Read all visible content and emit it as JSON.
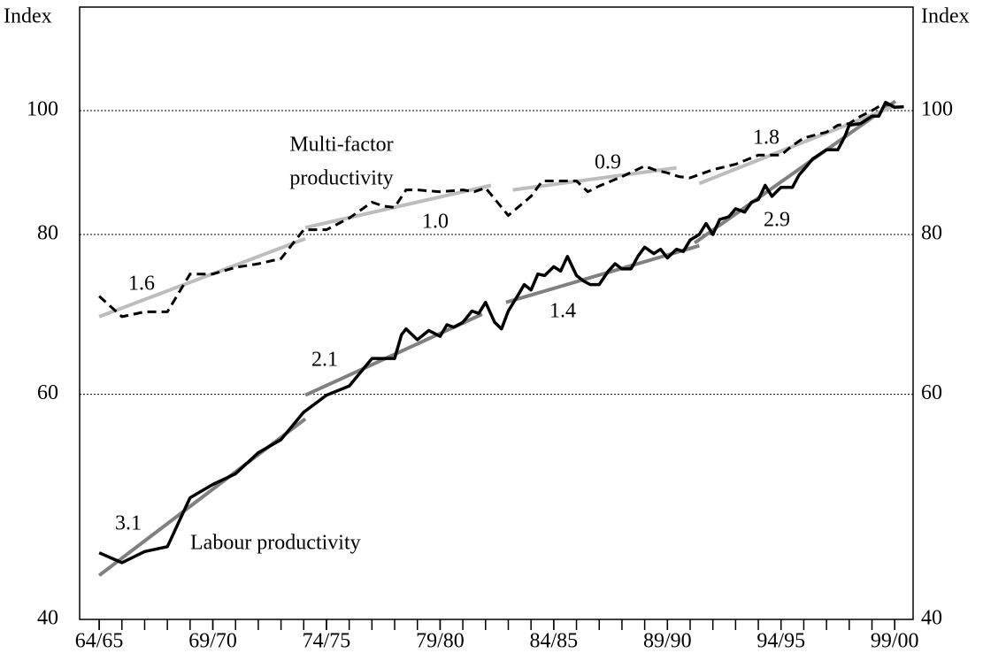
{
  "chart_data": {
    "type": "line",
    "log_y": true,
    "y_axis_label": "Index",
    "y2_axis_label": "Index",
    "xlim": [
      1963.14,
      1999.81
    ],
    "xticks": [
      {
        "value": 1964,
        "label": "64/65"
      },
      {
        "value": 1969,
        "label": "69/70"
      },
      {
        "value": 1974,
        "label": "74/75"
      },
      {
        "value": 1979,
        "label": "79/80"
      },
      {
        "value": 1984,
        "label": "84/85"
      },
      {
        "value": 1989,
        "label": "89/90"
      },
      {
        "value": 1994,
        "label": "94/95"
      },
      {
        "value": 1999,
        "label": "99/00"
      }
    ],
    "ylim": [
      40,
      120.5
    ],
    "yticks": [
      40,
      60,
      80,
      100
    ],
    "grid": true,
    "series": [
      {
        "color": "#000000",
        "dashed": false,
        "x": [
          1964,
          1965,
          1966,
          1967,
          1968,
          1969,
          1970,
          1971,
          1972,
          1973,
          1974,
          1975,
          1976,
          1977,
          1977.3,
          1977.5,
          1978,
          1978.5,
          1979,
          1979.3,
          1979.6,
          1980,
          1980.4,
          1980.7,
          1981,
          1981.4,
          1981.7,
          1982,
          1982.4,
          1982.7,
          1983,
          1983.3,
          1983.6,
          1984,
          1984.3,
          1984.6,
          1985,
          1985.3,
          1985.6,
          1986,
          1986.4,
          1986.7,
          1987,
          1987.4,
          1987.7,
          1988,
          1988.4,
          1988.7,
          1989,
          1989.4,
          1989.7,
          1990,
          1990.4,
          1990.7,
          1991,
          1991.3,
          1991.7,
          1992,
          1992.4,
          1992.7,
          1993,
          1993.3,
          1993.6,
          1994,
          1994.5,
          1994.8,
          1995,
          1995.4,
          1996,
          1996.5,
          1996.8,
          1997,
          1997.5,
          1998,
          1998.3,
          1998.6,
          1999,
          1999.4
        ],
        "values": [
          45.1,
          44.3,
          45.2,
          45.6,
          49.8,
          51.0,
          52.0,
          54.0,
          55.3,
          58.1,
          59.9,
          60.9,
          64.0,
          64.0,
          66.8,
          67.5,
          66.2,
          67.3,
          66.6,
          68.0,
          67.7,
          68.3,
          69.7,
          69.4,
          70.8,
          68.3,
          67.5,
          69.7,
          71.6,
          73.1,
          72.4,
          74.5,
          74.3,
          75.5,
          74.9,
          76.9,
          74.3,
          73.6,
          73.1,
          73.1,
          74.9,
          75.9,
          75.2,
          75.2,
          76.9,
          78.2,
          77.3,
          77.9,
          76.7,
          77.9,
          77.6,
          79.2,
          80.0,
          81.6,
          80.0,
          82.2,
          82.6,
          83.8,
          83.3,
          84.8,
          85.2,
          87.4,
          85.7,
          87.1,
          87.1,
          89.1,
          89.9,
          91.7,
          93.2,
          93.2,
          95.4,
          97.4,
          97.7,
          99.0,
          99.0,
          101.5,
          100.6,
          100.7
        ]
      },
      {
        "color": "#000000",
        "dashed": true,
        "x": [
          1964,
          1965,
          1966,
          1967,
          1968,
          1969,
          1970,
          1971,
          1972,
          1973,
          1974,
          1975,
          1976,
          1976.5,
          1977,
          1977.5,
          1978,
          1979,
          1980,
          1980.5,
          1981,
          1982,
          1983,
          1983.5,
          1984,
          1985,
          1985.5,
          1986,
          1987,
          1988,
          1988.5,
          1989,
          1989.5,
          1990,
          1991,
          1992,
          1993,
          1994,
          1994.5,
          1995,
          1996,
          1996.5,
          1997,
          1997.5,
          1998,
          1998.5,
          1999
        ],
        "values": [
          71.6,
          69.0,
          69.6,
          69.6,
          74.5,
          74.5,
          75.4,
          75.9,
          76.6,
          80.7,
          80.7,
          82.4,
          84.8,
          84.2,
          84.0,
          86.7,
          86.7,
          86.4,
          86.7,
          86.4,
          87.0,
          82.8,
          85.7,
          88.1,
          88.1,
          88.1,
          86.4,
          87.3,
          88.8,
          90.5,
          89.8,
          89.4,
          88.8,
          88.6,
          89.9,
          90.8,
          92.3,
          92.3,
          93.9,
          95.2,
          96.2,
          97.4,
          97.7,
          99.0,
          100.0,
          101.2,
          100.9
        ]
      }
    ],
    "trends": [
      {
        "label": "3.1",
        "color": "#808080",
        "x": [
          1964,
          1973.07
        ],
        "values": [
          43.3,
          57.4
        ]
      },
      {
        "label": "2.1",
        "color": "#808080",
        "x": [
          1973.07,
          1980.85
        ],
        "values": [
          59.9,
          69.3
        ]
      },
      {
        "label": "1.4",
        "color": "#808080",
        "x": [
          1981.9,
          1990.4
        ],
        "values": [
          70.8,
          78.4
        ]
      },
      {
        "label": "2.9",
        "color": "#808080",
        "x": [
          1990.2,
          1999.03
        ],
        "values": [
          78.8,
          101.7
        ]
      },
      {
        "label": "1.6",
        "color": "#bdbdbd",
        "x": [
          1964,
          1973.07
        ],
        "values": [
          69.0,
          79.4
        ]
      },
      {
        "label": "1.0",
        "color": "#bdbdbd",
        "x": [
          1973.07,
          1981.24
        ],
        "values": [
          81.0,
          87.4
        ]
      },
      {
        "label": "0.9",
        "color": "#bdbdbd",
        "x": [
          1982.2,
          1989.4
        ],
        "values": [
          86.7,
          90.2
        ]
      },
      {
        "label": "1.8",
        "color": "#bdbdbd",
        "x": [
          1990.4,
          1999.03
        ],
        "values": [
          87.7,
          100.9
        ]
      }
    ],
    "annotations": [
      "Multi-factor",
      "productivity",
      "Labour productivity"
    ]
  }
}
